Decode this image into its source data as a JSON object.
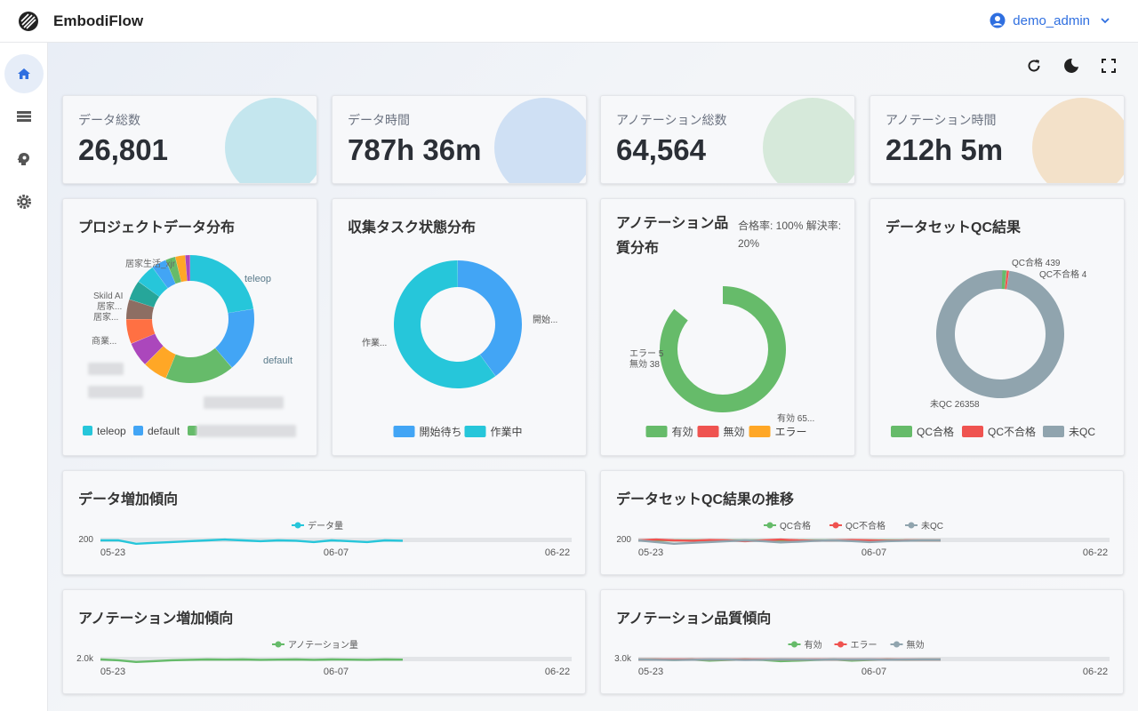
{
  "app": {
    "title": "EmbodiFlow",
    "user": "demo_admin"
  },
  "sidebar": {
    "items": [
      {
        "icon": "home-icon"
      },
      {
        "icon": "list-icon"
      },
      {
        "icon": "brain-icon"
      },
      {
        "icon": "gear-icon"
      }
    ]
  },
  "toolbar": {
    "icons": [
      "refresh-icon",
      "dark-mode-icon",
      "fullscreen-icon"
    ]
  },
  "stats": [
    {
      "label": "データ総数",
      "value": "26,801",
      "color": "#c4e6ee"
    },
    {
      "label": "データ時間",
      "value": "787h 36m",
      "color": "#cfe0f4"
    },
    {
      "label": "アノテーション総数",
      "value": "64,564",
      "color": "#d6e9da"
    },
    {
      "label": "アノテーション時間",
      "value": "212h 5m",
      "color": "#f3e1c9"
    }
  ],
  "cards": {
    "project": {
      "title": "プロジェクトデータ分布"
    },
    "task": {
      "title": "収集タスク状態分布"
    },
    "quality": {
      "title": "アノテーション品質分布",
      "note": "合格率: 100% 解決率: 20%"
    },
    "qc": {
      "title": "データセットQC結果"
    },
    "data_trend": {
      "title": "データ増加傾向"
    },
    "qc_trend": {
      "title": "データセットQC結果の推移"
    },
    "anno_trend": {
      "title": "アノテーション増加傾向"
    },
    "quality_trend": {
      "title": "アノテーション品質傾向"
    }
  },
  "chart_data": [
    {
      "type": "pie",
      "id": "project",
      "title": "プロジェクトデータ分布",
      "slices": [
        {
          "name": "teleop",
          "value": 18,
          "color": "#26c6da"
        },
        {
          "name": "default",
          "value": 13,
          "color": "#42a5f5"
        },
        {
          "name": "",
          "value": 14,
          "color": "#66bb6a"
        },
        {
          "name": "",
          "value": 5,
          "color": "#ffa726"
        },
        {
          "name": "",
          "value": 5,
          "color": "#ab47bc"
        },
        {
          "name": "",
          "value": 5,
          "color": "#ff7043"
        },
        {
          "name": "",
          "value": 4,
          "color": "#8d6e63"
        },
        {
          "name": "",
          "value": 4,
          "color": "#26a69a"
        },
        {
          "name": "商業...",
          "value": 4,
          "color": "#26c6da"
        },
        {
          "name": "居家...",
          "value": 3,
          "color": "#42a5f5"
        },
        {
          "name": "居家...",
          "value": 2,
          "color": "#66bb6a"
        },
        {
          "name": "Skild AI",
          "value": 2,
          "color": "#ffa726"
        },
        {
          "name": "居家生活_xjr",
          "value": 1,
          "color": "#ab47bc"
        }
      ],
      "legend": [
        "teleop",
        "default"
      ],
      "labels": {
        "teleop": "teleop",
        "default": "default",
        "l1": "居家生活_xjr",
        "l2": "Skild AI",
        "l3": "居家...",
        "l4": "居家...",
        "l5": "商業..."
      }
    },
    {
      "type": "pie",
      "id": "task",
      "title": "収集タスク状態分布",
      "slices": [
        {
          "name": "開始待ち",
          "value": 40,
          "color": "#42a5f5"
        },
        {
          "name": "作業中",
          "value": 60,
          "color": "#26c6da"
        }
      ],
      "legend": [
        "開始待ち",
        "作業中"
      ],
      "labels": {
        "a": "開始...",
        "b": "作業..."
      }
    },
    {
      "type": "pie",
      "id": "quality",
      "title": "アノテーション品質分布",
      "slices": [
        {
          "name": "有効",
          "value": 65,
          "color": "#66bb6a"
        },
        {
          "name": "無効",
          "value": 38,
          "color": "#ef5350"
        },
        {
          "name": "エラー",
          "value": 5,
          "color": "#ffa726"
        }
      ],
      "legend": [
        "有効",
        "無効",
        "エラー"
      ],
      "labels": {
        "a": "有効 65...",
        "b": "エラー 5",
        "c": "無効 38"
      }
    },
    {
      "type": "pie",
      "id": "qc",
      "title": "データセットQC結果",
      "slices": [
        {
          "name": "QC合格",
          "value": 439,
          "color": "#66bb6a"
        },
        {
          "name": "QC不合格",
          "value": 4,
          "color": "#ef5350"
        },
        {
          "name": "未QC",
          "value": 26358,
          "color": "#90a4ae"
        }
      ],
      "legend": [
        "QC合格",
        "QC不合格",
        "未QC"
      ],
      "labels": {
        "a": "QC合格 439",
        "b": "QC不合格 4",
        "c": "未QC 26358"
      }
    },
    {
      "type": "line",
      "id": "data_trend",
      "title": "データ増加傾向",
      "x_ticks": [
        "05-23",
        "06-07",
        "06-22"
      ],
      "y_tick": "200",
      "series": [
        {
          "name": "データ量",
          "color": "#26c6da",
          "values": [
            200,
            200,
            180,
            185,
            190,
            195,
            200,
            205,
            200,
            195,
            200,
            198,
            190,
            200,
            195,
            190,
            200,
            198
          ]
        }
      ]
    },
    {
      "type": "line",
      "id": "qc_trend",
      "title": "データセットQC結果の推移",
      "x_ticks": [
        "05-23",
        "06-07",
        "06-22"
      ],
      "y_tick": "200",
      "series": [
        {
          "name": "QC合格",
          "color": "#66bb6a",
          "values": [
            200,
            200,
            200,
            200,
            200,
            200,
            200,
            200,
            200,
            200,
            200,
            200,
            200,
            200,
            200,
            200,
            200,
            200
          ]
        },
        {
          "name": "QC不合格",
          "color": "#ef5350",
          "values": [
            200,
            205,
            200,
            198,
            202,
            200,
            195,
            200,
            205,
            200,
            198,
            200,
            202,
            200,
            198,
            200,
            200,
            200
          ]
        },
        {
          "name": "未QC",
          "color": "#90a4ae",
          "values": [
            200,
            190,
            180,
            185,
            190,
            195,
            200,
            195,
            188,
            192,
            198,
            200,
            196,
            190,
            195,
            198,
            200,
            200
          ]
        }
      ]
    },
    {
      "type": "line",
      "id": "anno_trend",
      "title": "アノテーション増加傾向",
      "x_ticks": [
        "05-23",
        "06-07",
        "06-22"
      ],
      "y_tick": "2.0k",
      "series": [
        {
          "name": "アノテーション量",
          "color": "#66bb6a",
          "values": [
            2000,
            1950,
            1850,
            1900,
            1950,
            1980,
            2000,
            1990,
            2000,
            1980,
            1990,
            2000,
            1980,
            2000,
            1990,
            1980,
            2000,
            1990
          ]
        }
      ]
    },
    {
      "type": "line",
      "id": "quality_trend",
      "title": "アノテーション品質傾向",
      "x_ticks": [
        "05-23",
        "06-07",
        "06-22"
      ],
      "y_tick": "3.0k",
      "series": [
        {
          "name": "有効",
          "color": "#66bb6a",
          "values": [
            3000,
            3000,
            2950,
            3000,
            2900,
            2950,
            3000,
            2950,
            2850,
            2900,
            2950,
            3000,
            2900,
            2950,
            3000,
            2980,
            3000,
            3000
          ]
        },
        {
          "name": "エラー",
          "color": "#ef5350",
          "values": [
            3000,
            3000,
            3000,
            3000,
            3000,
            3000,
            3000,
            3000,
            3000,
            3000,
            3000,
            3000,
            3000,
            3000,
            3000,
            3000,
            3000,
            3000
          ]
        },
        {
          "name": "無効",
          "color": "#90a4ae",
          "values": [
            3000,
            2980,
            2950,
            2980,
            3000,
            2990,
            2950,
            2980,
            3000,
            2990,
            2980,
            3000,
            2990,
            3000,
            2980,
            2990,
            3000,
            3000
          ]
        }
      ]
    }
  ]
}
